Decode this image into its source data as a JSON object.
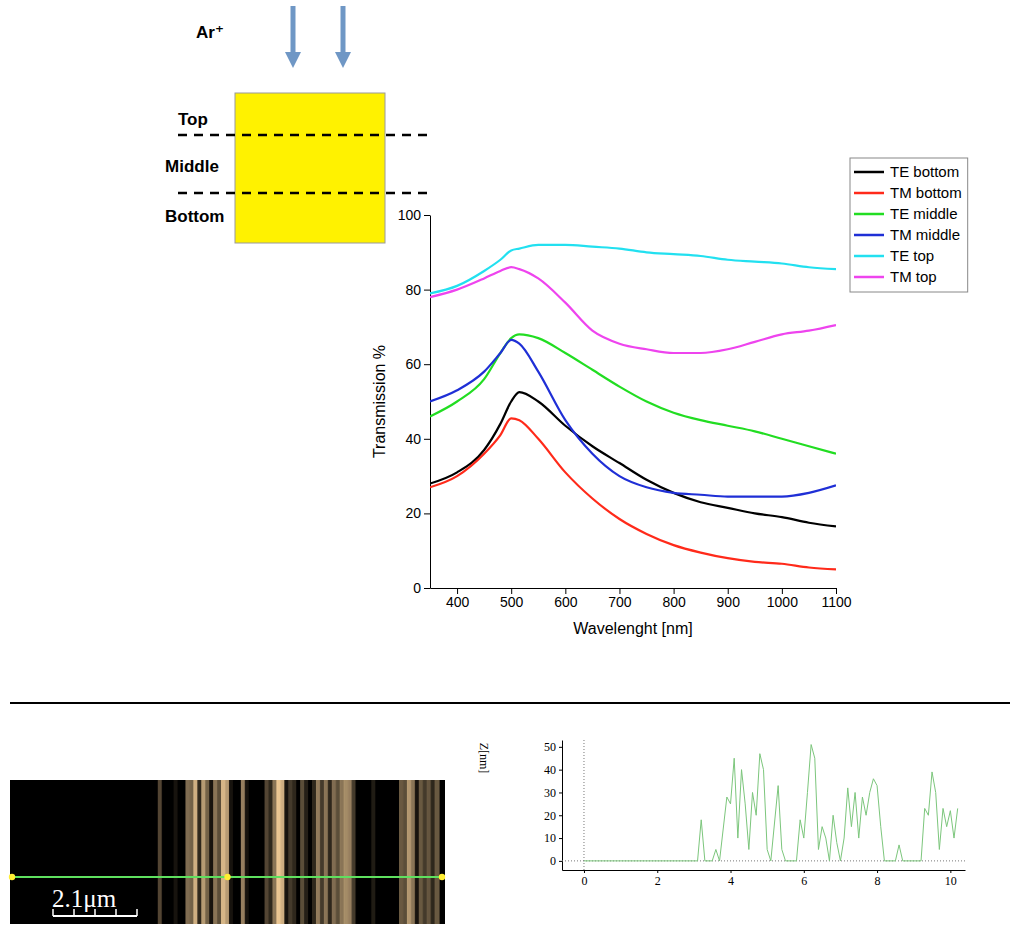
{
  "chart_data": [
    {
      "type": "line",
      "xlabel": "Wavelenght [nm]",
      "ylabel": "Transmission %",
      "x": [
        350,
        400,
        450,
        480,
        500,
        515,
        550,
        600,
        650,
        700,
        750,
        800,
        850,
        900,
        950,
        1000,
        1050,
        1100
      ],
      "series": [
        {
          "name": "TE bottom",
          "color": "#000000",
          "values": [
            28,
            31,
            37,
            44,
            50,
            52.5,
            50,
            43.5,
            38,
            33.5,
            29,
            25.5,
            23,
            21.5,
            20,
            19,
            17.5,
            16.5
          ]
        },
        {
          "name": "TM bottom",
          "color": "#ff2a1a",
          "values": [
            27,
            30,
            36,
            41,
            45.5,
            45,
            40,
            31,
            24,
            18.5,
            14.5,
            11.5,
            9.5,
            8,
            7,
            6.5,
            5.5,
            5
          ]
        },
        {
          "name": "TE middle",
          "color": "#22dd22",
          "values": [
            46,
            50,
            56,
            63,
            67,
            68,
            67,
            63,
            58.5,
            54,
            50,
            47,
            45,
            43.5,
            42,
            40,
            38,
            36
          ]
        },
        {
          "name": "TM middle",
          "color": "#1f2fd6",
          "values": [
            50,
            53,
            58,
            63,
            66.5,
            65.5,
            58,
            45,
            36,
            30,
            27,
            25.5,
            25,
            24.5,
            24.5,
            24.5,
            25.5,
            27.5
          ]
        },
        {
          "name": "TE top",
          "color": "#22e0f0",
          "values": [
            79,
            81,
            85,
            88,
            90.5,
            91,
            92,
            92,
            91.5,
            91,
            90,
            89.5,
            89,
            88,
            87.5,
            87,
            86,
            85.5
          ]
        },
        {
          "name": "TM top",
          "color": "#ee44ee",
          "values": [
            78,
            80,
            83,
            85,
            86,
            85.5,
            83,
            76.5,
            69,
            65.5,
            64,
            63,
            63,
            64,
            66,
            68,
            69,
            70.5
          ]
        }
      ],
      "xlim": [
        350,
        1100
      ],
      "ylim": [
        0,
        100
      ],
      "xticks": [
        400,
        500,
        600,
        700,
        800,
        900,
        1000,
        1100
      ],
      "yticks": [
        0,
        20,
        40,
        60,
        80,
        100
      ],
      "legend": "right"
    },
    {
      "type": "line",
      "ylabel": "Z[nm]",
      "x": [
        0,
        3.1,
        3.2,
        3.3,
        3.5,
        3.6,
        3.7,
        3.9,
        4.0,
        4.1,
        4.2,
        4.3,
        4.4,
        4.5,
        4.6,
        4.7,
        4.8,
        4.9,
        5.0,
        5.1,
        5.3,
        5.4,
        5.5,
        5.8,
        5.9,
        6.0,
        6.1,
        6.2,
        6.3,
        6.4,
        6.5,
        6.6,
        6.7,
        6.8,
        6.9,
        7.0,
        7.1,
        7.2,
        7.3,
        7.4,
        7.5,
        7.6,
        7.7,
        7.8,
        7.9,
        8.0,
        8.1,
        8.2,
        8.5,
        8.6,
        8.7,
        9.2,
        9.3,
        9.4,
        9.5,
        9.6,
        9.7,
        9.8,
        9.9,
        10.0,
        10.1,
        10.2
      ],
      "series": [
        {
          "color": "#7cc67c",
          "values": [
            0,
            0,
            18,
            0,
            0,
            5,
            0,
            28,
            25,
            45,
            10,
            40,
            25,
            5,
            30,
            20,
            47,
            40,
            5,
            0,
            33,
            5,
            0,
            0,
            18,
            10,
            30,
            51,
            45,
            5,
            15,
            10,
            0,
            20,
            8,
            0,
            10,
            32,
            15,
            30,
            10,
            28,
            20,
            30,
            36,
            33,
            15,
            0,
            0,
            7,
            0,
            0,
            23,
            20,
            39,
            30,
            5,
            23,
            15,
            22,
            10,
            23
          ]
        }
      ],
      "xlim": [
        -0.6,
        10.4
      ],
      "ylim": [
        -4,
        53
      ],
      "xticks": [
        0,
        2,
        4,
        6,
        8,
        10
      ],
      "yticks": [
        0,
        10,
        20,
        30,
        40,
        50
      ]
    }
  ],
  "diagram": {
    "beam_label": "Ar⁺",
    "layers": [
      "Top",
      "Middle",
      "Bottom"
    ]
  },
  "afm_image": {
    "scale_label": "2.1μm"
  }
}
